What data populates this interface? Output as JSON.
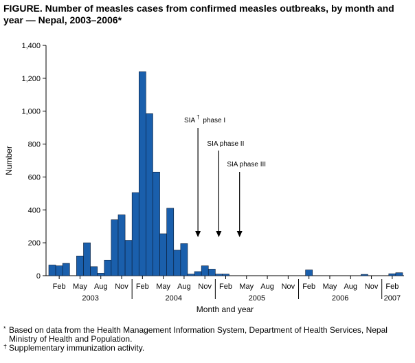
{
  "title": "FIGURE. Number of measles cases from confirmed measles outbreaks, by month and year — Nepal, 2003–2006*",
  "chart_data": {
    "type": "bar",
    "title": "Number of measles cases from confirmed measles outbreaks, by month and year — Nepal, 2003–2006",
    "xlabel": "Month and year",
    "ylabel": "Number",
    "ylim": [
      0,
      1400
    ],
    "yticks": [
      0,
      200,
      400,
      600,
      800,
      1000,
      1200,
      1400
    ],
    "ytick_labels": [
      "0",
      "200",
      "400",
      "600",
      "800",
      "1,000",
      "1,200",
      "1,400"
    ],
    "month_tick_labels": [
      "Feb",
      "May",
      "Aug",
      "Nov",
      "Feb",
      "May",
      "Aug",
      "Nov",
      "Feb",
      "May",
      "Aug",
      "Nov",
      "Feb",
      "May",
      "Aug",
      "Nov",
      "Feb"
    ],
    "month_tick_index": [
      1,
      4,
      7,
      10,
      13,
      16,
      19,
      22,
      25,
      28,
      31,
      34,
      37,
      40,
      43,
      46,
      49
    ],
    "years": [
      {
        "label": "2003",
        "start": 0,
        "end": 12
      },
      {
        "label": "2004",
        "start": 12,
        "end": 24
      },
      {
        "label": "2005",
        "start": 24,
        "end": 36
      },
      {
        "label": "2006",
        "start": 36,
        "end": 48
      },
      {
        "label": "2007",
        "start": 48,
        "end": 51
      }
    ],
    "categories": [
      "Jan 2003",
      "Feb 2003",
      "Mar 2003",
      "Apr 2003",
      "May 2003",
      "Jun 2003",
      "Jul 2003",
      "Aug 2003",
      "Sep 2003",
      "Oct 2003",
      "Nov 2003",
      "Dec 2003",
      "Jan 2004",
      "Feb 2004",
      "Mar 2004",
      "Apr 2004",
      "May 2004",
      "Jun 2004",
      "Jul 2004",
      "Aug 2004",
      "Sep 2004",
      "Oct 2004",
      "Nov 2004",
      "Dec 2004",
      "Jan 2005",
      "Feb 2005",
      "Mar 2005",
      "Apr 2005",
      "May 2005",
      "Jun 2005",
      "Jul 2005",
      "Aug 2005",
      "Sep 2005",
      "Oct 2005",
      "Nov 2005",
      "Dec 2005",
      "Jan 2006",
      "Feb 2006",
      "Mar 2006",
      "Apr 2006",
      "May 2006",
      "Jun 2006",
      "Jul 2006",
      "Aug 2006",
      "Sep 2006",
      "Oct 2006",
      "Nov 2006",
      "Dec 2006",
      "Jan 2007",
      "Feb 2007",
      "Mar 2007"
    ],
    "values": [
      65,
      60,
      75,
      0,
      120,
      200,
      55,
      15,
      95,
      340,
      370,
      215,
      505,
      1240,
      985,
      630,
      255,
      410,
      155,
      195,
      10,
      25,
      60,
      40,
      10,
      10,
      0,
      0,
      0,
      0,
      0,
      0,
      0,
      0,
      0,
      0,
      0,
      35,
      0,
      0,
      0,
      0,
      0,
      0,
      0,
      8,
      0,
      0,
      0,
      12,
      18
    ],
    "annotations": [
      {
        "label": "SIA",
        "sup": "†",
        "suffix": " phase I",
        "month_index": 21.5
      },
      {
        "label": "SIA phase II",
        "sup": "",
        "suffix": "",
        "month_index": 24.5
      },
      {
        "label": "SIA phase III",
        "sup": "",
        "suffix": "",
        "month_index": 27.5
      }
    ],
    "colors": {
      "bar": "#1a5fac",
      "bar_edge": "#0a1a33",
      "axis": "#000000"
    }
  },
  "footnotes": [
    {
      "mark": "*",
      "text": "Based on data from the Health Management Information System, Department of Health Services, Nepal Ministry of Health and Population."
    },
    {
      "mark": "†",
      "text": "Supplementary immunization activity."
    }
  ]
}
